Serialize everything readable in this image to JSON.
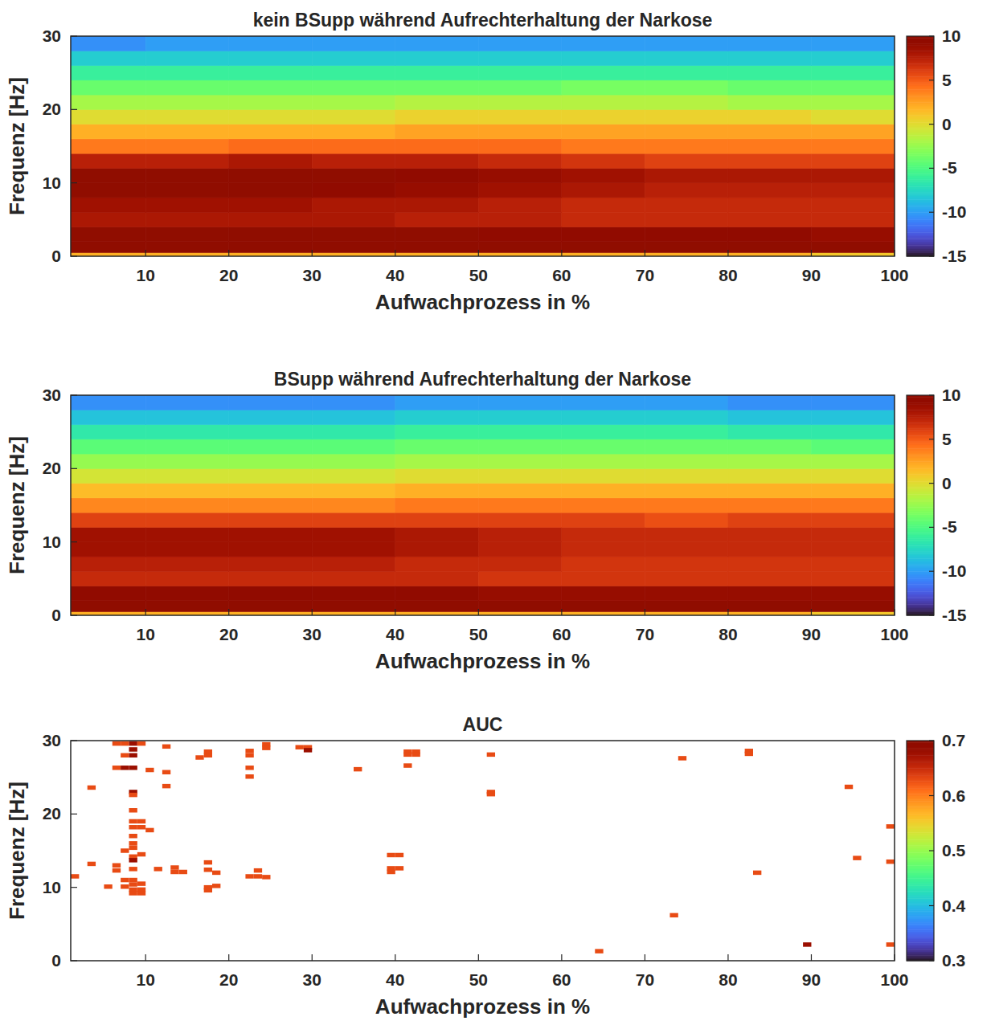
{
  "chart_data": [
    {
      "type": "heatmap",
      "title": "kein BSupp während Aufrechterhaltung der Narkose",
      "x_label": "Aufwachprozess in %",
      "y_label": "Frequenz [Hz]",
      "xlim": [
        1,
        100
      ],
      "ylim": [
        0,
        30
      ],
      "xticks": [
        10,
        20,
        30,
        40,
        50,
        60,
        70,
        80,
        90,
        100
      ],
      "yticks": [
        0,
        10,
        20,
        30
      ],
      "x_bins": [
        1,
        10,
        20,
        30,
        40,
        50,
        60,
        70,
        80,
        90,
        100
      ],
      "y_bins": [
        0,
        0.5,
        2,
        4,
        6,
        8,
        10,
        12,
        14,
        16,
        18,
        20,
        22,
        24,
        26,
        28,
        30
      ],
      "z": [
        [
          2,
          2,
          2,
          2,
          2,
          2,
          2,
          2,
          2,
          1
        ],
        [
          12,
          12,
          12,
          12,
          12,
          12,
          12,
          12,
          12,
          11
        ],
        [
          10,
          10,
          10,
          10,
          10,
          9.5,
          9.5,
          9.5,
          9.5,
          9
        ],
        [
          8,
          8,
          8,
          8,
          7.5,
          7.5,
          7,
          7,
          7,
          7
        ],
        [
          8.5,
          8.5,
          8.5,
          8,
          8,
          7.5,
          7,
          7,
          7,
          7
        ],
        [
          10,
          10,
          10,
          9.5,
          9,
          8.5,
          8,
          7.5,
          7.5,
          7.5
        ],
        [
          10.5,
          10.5,
          10.5,
          10,
          9.5,
          9,
          8.5,
          8,
          8,
          8
        ],
        [
          7.5,
          7.5,
          8,
          7.5,
          7.5,
          7,
          6.5,
          6,
          6,
          6
        ],
        [
          4,
          4,
          4.5,
          4.5,
          4.5,
          4.5,
          4,
          4,
          4,
          4
        ],
        [
          2,
          2,
          2,
          2,
          2.5,
          2.5,
          2.5,
          2.5,
          2.5,
          2.5
        ],
        [
          0,
          0,
          0,
          0,
          0.5,
          0.5,
          0.5,
          0.5,
          0.5,
          0
        ],
        [
          -2,
          -2,
          -2,
          -2,
          -1.5,
          -1.5,
          -1.5,
          -1.5,
          -2,
          -2
        ],
        [
          -4,
          -4,
          -4,
          -4,
          -4,
          -4,
          -3.5,
          -3.5,
          -4,
          -4
        ],
        [
          -6,
          -6,
          -6,
          -6,
          -6,
          -6,
          -6,
          -6,
          -6,
          -6
        ],
        [
          -8,
          -8,
          -8,
          -8,
          -8,
          -8,
          -8,
          -8,
          -8,
          -8
        ],
        [
          -10.5,
          -10,
          -10,
          -10,
          -10,
          -10,
          -10,
          -10,
          -10,
          -10
        ]
      ],
      "zlim": [
        -15,
        10
      ],
      "zticks": [
        -15,
        -10,
        -5,
        0,
        5,
        10
      ]
    },
    {
      "type": "heatmap",
      "title": "BSupp während Aufrechterhaltung der Narkose",
      "x_label": "Aufwachprozess in %",
      "y_label": "Frequenz [Hz]",
      "xlim": [
        1,
        100
      ],
      "ylim": [
        0,
        30
      ],
      "xticks": [
        10,
        20,
        30,
        40,
        50,
        60,
        70,
        80,
        90,
        100
      ],
      "yticks": [
        0,
        10,
        20,
        30
      ],
      "x_bins": [
        1,
        10,
        20,
        30,
        40,
        50,
        60,
        70,
        80,
        90,
        100
      ],
      "y_bins": [
        0,
        0.5,
        2,
        4,
        6,
        8,
        10,
        12,
        14,
        16,
        18,
        20,
        22,
        24,
        26,
        28,
        30
      ],
      "z": [
        [
          2,
          2,
          2,
          2,
          2,
          2,
          2,
          2,
          2,
          1
        ],
        [
          12,
          12,
          12,
          12,
          12,
          12,
          12,
          12,
          12,
          11
        ],
        [
          9.5,
          9.5,
          9.5,
          9.5,
          9.5,
          9,
          9,
          9,
          9,
          9
        ],
        [
          7,
          7,
          7,
          7,
          7,
          6.5,
          6.5,
          6.5,
          6.5,
          6.5
        ],
        [
          7.5,
          7.5,
          7.5,
          7.5,
          7,
          7,
          6.5,
          6.5,
          6.5,
          6.5
        ],
        [
          8.5,
          8.5,
          8.5,
          8.5,
          8,
          7.5,
          7,
          7,
          7,
          7
        ],
        [
          8.5,
          8.5,
          8.5,
          8.5,
          8,
          7.5,
          7,
          7,
          7,
          7
        ],
        [
          6,
          6,
          6,
          6,
          6,
          6,
          6,
          5.5,
          6,
          6
        ],
        [
          3.5,
          3.5,
          3.5,
          3.5,
          4,
          4,
          4,
          4,
          4,
          4
        ],
        [
          1.5,
          1.5,
          1.5,
          1.5,
          2,
          2,
          2,
          2,
          2,
          2
        ],
        [
          -0.5,
          -0.5,
          -0.5,
          -0.5,
          0,
          0,
          0,
          0,
          0,
          0
        ],
        [
          -2.5,
          -2.5,
          -2.5,
          -2.5,
          -2,
          -2,
          -2,
          -2,
          -2,
          -2
        ],
        [
          -4.5,
          -4.5,
          -4.5,
          -4.5,
          -4,
          -4,
          -4,
          -4,
          -4,
          -4.5
        ],
        [
          -6.5,
          -6.5,
          -6.5,
          -6.5,
          -6,
          -6,
          -6,
          -6,
          -6.5,
          -6.5
        ],
        [
          -8.5,
          -8.5,
          -8.5,
          -8.5,
          -8,
          -8,
          -8,
          -8,
          -8.5,
          -8.5
        ],
        [
          -10.5,
          -10.5,
          -10.5,
          -10.5,
          -10,
          -10,
          -10,
          -10,
          -10.5,
          -10.5
        ]
      ],
      "zlim": [
        -15,
        10
      ],
      "zticks": [
        -15,
        -10,
        -5,
        0,
        5,
        10
      ]
    },
    {
      "type": "heatmap",
      "title": "AUC",
      "x_label": "Aufwachprozess in %",
      "y_label": "Frequenz [Hz]",
      "xlim": [
        1,
        100
      ],
      "ylim": [
        0,
        30
      ],
      "xticks": [
        10,
        20,
        30,
        40,
        50,
        60,
        70,
        80,
        90,
        100
      ],
      "yticks": [
        0,
        10,
        20,
        30
      ],
      "x_step": 1,
      "y_step": 0.6,
      "cells": {
        "x": [
          1,
          3,
          3,
          6,
          7,
          8,
          9,
          8,
          7,
          8,
          6,
          7,
          8,
          10,
          8,
          8,
          8,
          8,
          9,
          8,
          9,
          10,
          8,
          8,
          8,
          7,
          9,
          8,
          8,
          6,
          6,
          8,
          7,
          8,
          8,
          9,
          5,
          7,
          8,
          9,
          8,
          9,
          11,
          12,
          12,
          12,
          13,
          13,
          14,
          16,
          17,
          17,
          17,
          17,
          18,
          17,
          18,
          17,
          22,
          22,
          22,
          22,
          22,
          23,
          23,
          24,
          24,
          24,
          28,
          29,
          29,
          35,
          39,
          40,
          39,
          40,
          39,
          41,
          42,
          41,
          42,
          41,
          51,
          51,
          51,
          64,
          73,
          74,
          82,
          82,
          83,
          89,
          94,
          95,
          99,
          99,
          99
        ],
        "y": [
          11.5,
          13.2,
          23.6,
          29.6,
          29.6,
          29.6,
          29.6,
          28.8,
          28.0,
          28.0,
          26.3,
          26.3,
          26.3,
          26.0,
          23.0,
          22.6,
          20.5,
          19.0,
          19.0,
          18.2,
          18.2,
          17.8,
          17.0,
          16.0,
          15.4,
          15.0,
          14.5,
          14.2,
          13.7,
          13.0,
          12.3,
          12.5,
          11.0,
          11.0,
          10.4,
          10.5,
          10.1,
          10.1,
          9.7,
          9.7,
          9.2,
          9.2,
          12.5,
          29.2,
          25.7,
          23.8,
          12.7,
          12.1,
          12.1,
          27.7,
          28.0,
          28.5,
          13.4,
          12.4,
          12.0,
          10.0,
          10.2,
          9.6,
          28.6,
          28.0,
          26.3,
          25.1,
          11.5,
          12.3,
          11.5,
          11.4,
          29.5,
          29.0,
          29.1,
          29.1,
          28.7,
          26.1,
          14.4,
          14.4,
          12.6,
          12.6,
          12.1,
          28.5,
          28.5,
          28.1,
          28.1,
          26.6,
          28.1,
          23.0,
          22.7,
          1.3,
          6.2,
          27.6,
          28.6,
          28.2,
          12.0,
          2.2,
          23.7,
          14.0,
          18.3,
          13.5,
          2.2
        ],
        "values": [
          0.63,
          0.63,
          0.63,
          0.63,
          0.63,
          0.68,
          0.63,
          0.68,
          0.63,
          0.68,
          0.63,
          0.68,
          0.68,
          0.63,
          0.68,
          0.63,
          0.63,
          0.63,
          0.63,
          0.63,
          0.63,
          0.63,
          0.63,
          0.63,
          0.63,
          0.63,
          0.63,
          0.63,
          0.68,
          0.63,
          0.63,
          0.63,
          0.63,
          0.63,
          0.63,
          0.63,
          0.63,
          0.63,
          0.63,
          0.63,
          0.63,
          0.63,
          0.63,
          0.63,
          0.63,
          0.63,
          0.63,
          0.63,
          0.63,
          0.63,
          0.63,
          0.63,
          0.63,
          0.63,
          0.63,
          0.63,
          0.63,
          0.63,
          0.63,
          0.63,
          0.63,
          0.63,
          0.63,
          0.63,
          0.63,
          0.63,
          0.63,
          0.63,
          0.63,
          0.63,
          0.68,
          0.63,
          0.63,
          0.63,
          0.63,
          0.63,
          0.63,
          0.63,
          0.63,
          0.63,
          0.63,
          0.63,
          0.63,
          0.63,
          0.63,
          0.63,
          0.63,
          0.63,
          0.63,
          0.63,
          0.63,
          0.68,
          0.63,
          0.63,
          0.63,
          0.63,
          0.63
        ]
      },
      "zlim": [
        0.3,
        0.7
      ],
      "zticks": [
        0.3,
        0.4,
        0.5,
        0.6,
        0.7
      ]
    }
  ]
}
